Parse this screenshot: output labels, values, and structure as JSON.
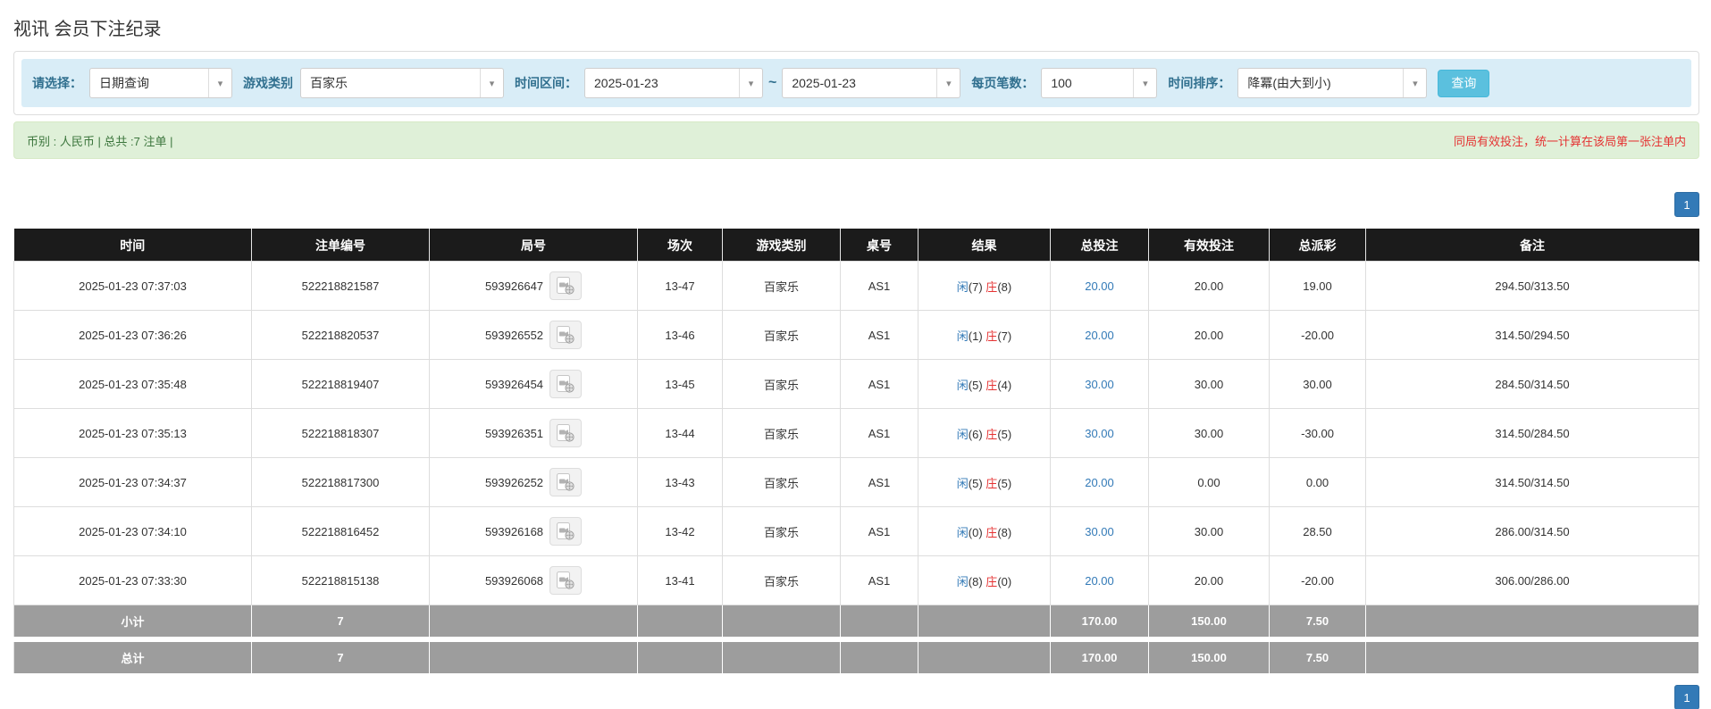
{
  "page": {
    "title": "视讯 会员下注纪录"
  },
  "filters": {
    "select_label": "请选择：",
    "select_value": "日期查询",
    "game_label": "游戏类别",
    "game_value": "百家乐",
    "range_label": "时间区间：",
    "range_from": "2025-01-23",
    "range_tilde": "~",
    "range_to": "2025-01-23",
    "pagesize_label": "每页笔数：",
    "pagesize_value": "100",
    "sort_label": "时间排序：",
    "sort_value": "降冪(由大到小)",
    "query_button": "查询"
  },
  "summary": {
    "left": "币别 : 人民币 | 总共 :7 注单 |",
    "right": "同局有效投注，统一计算在该局第一张注单内"
  },
  "pagination": {
    "page": "1"
  },
  "icons": {
    "caret": "caret-down-icon",
    "video": "video-record-icon"
  },
  "colors": {
    "accent_blue": "#337ab7",
    "query_button_blue": "#5bc0de",
    "filter_bar_bg": "#d9edf7",
    "filter_label_blue": "#31708f",
    "alert_green_bg": "#dff0d8",
    "alert_green_text": "#3c763d",
    "notice_red": "#e53333",
    "negative_red": "#e53333",
    "player_blue": "#337ab7",
    "banker_red": "#e53333",
    "table_header_bg": "#1b1b1b",
    "summary_row_gray": "#9d9d9d"
  },
  "table": {
    "headers": [
      "时间",
      "注单编号",
      "局号",
      "场次",
      "游戏类别",
      "桌号",
      "结果",
      "总投注",
      "有效投注",
      "总派彩",
      "备注"
    ],
    "result_labels": {
      "player": "闲",
      "banker": "庄"
    },
    "rows": [
      {
        "time": "2025-01-23 07:37:03",
        "bet_id": "522218821587",
        "round_id": "593926647",
        "session": "13-47",
        "game": "百家乐",
        "table_no": "AS1",
        "player": "(7)",
        "banker": "(8)",
        "total_bet": "20.00",
        "valid_bet": "20.00",
        "payout": "19.00",
        "remark": "294.50/313.50"
      },
      {
        "time": "2025-01-23 07:36:26",
        "bet_id": "522218820537",
        "round_id": "593926552",
        "session": "13-46",
        "game": "百家乐",
        "table_no": "AS1",
        "player": "(1)",
        "banker": "(7)",
        "total_bet": "20.00",
        "valid_bet": "20.00",
        "payout": "-20.00",
        "remark": "314.50/294.50"
      },
      {
        "time": "2025-01-23 07:35:48",
        "bet_id": "522218819407",
        "round_id": "593926454",
        "session": "13-45",
        "game": "百家乐",
        "table_no": "AS1",
        "player": "(5)",
        "banker": "(4)",
        "total_bet": "30.00",
        "valid_bet": "30.00",
        "payout": "30.00",
        "remark": "284.50/314.50"
      },
      {
        "time": "2025-01-23 07:35:13",
        "bet_id": "522218818307",
        "round_id": "593926351",
        "session": "13-44",
        "game": "百家乐",
        "table_no": "AS1",
        "player": "(6)",
        "banker": "(5)",
        "total_bet": "30.00",
        "valid_bet": "30.00",
        "payout": "-30.00",
        "remark": "314.50/284.50"
      },
      {
        "time": "2025-01-23 07:34:37",
        "bet_id": "522218817300",
        "round_id": "593926252",
        "session": "13-43",
        "game": "百家乐",
        "table_no": "AS1",
        "player": "(5)",
        "banker": "(5)",
        "total_bet": "20.00",
        "valid_bet": "0.00",
        "payout": "0.00",
        "remark": "314.50/314.50"
      },
      {
        "time": "2025-01-23 07:34:10",
        "bet_id": "522218816452",
        "round_id": "593926168",
        "session": "13-42",
        "game": "百家乐",
        "table_no": "AS1",
        "player": "(0)",
        "banker": "(8)",
        "total_bet": "30.00",
        "valid_bet": "30.00",
        "payout": "28.50",
        "remark": "286.00/314.50"
      },
      {
        "time": "2025-01-23 07:33:30",
        "bet_id": "522218815138",
        "round_id": "593926068",
        "session": "13-41",
        "game": "百家乐",
        "table_no": "AS1",
        "player": "(8)",
        "banker": "(0)",
        "total_bet": "20.00",
        "valid_bet": "20.00",
        "payout": "-20.00",
        "remark": "306.00/286.00"
      }
    ],
    "subtotal": {
      "cells": [
        "小计",
        "7",
        "",
        "",
        "",
        "",
        "",
        "170.00",
        "150.00",
        "7.50",
        ""
      ]
    },
    "total": {
      "cells": [
        "总计",
        "7",
        "",
        "",
        "",
        "",
        "",
        "170.00",
        "150.00",
        "7.50",
        ""
      ]
    }
  }
}
